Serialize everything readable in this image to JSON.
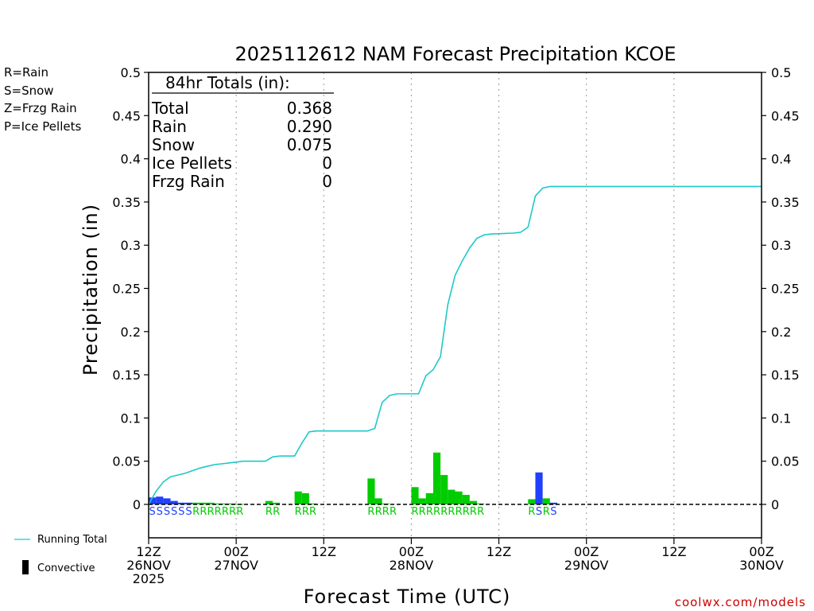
{
  "chart_data": {
    "type": "bar",
    "title": "2025112612 NAM Forecast Precipitation KCOE",
    "xlabel": "Forecast Time (UTC)",
    "ylabel": "Precipitation (in)",
    "ylim": [
      0,
      0.5
    ],
    "y_ticks": [
      "0",
      "0.05",
      "0.1",
      "0.15",
      "0.2",
      "0.25",
      "0.3",
      "0.35",
      "0.4",
      "0.45",
      "0.5"
    ],
    "x_range_hours": [
      0,
      84
    ],
    "x_ticks": [
      {
        "hour": 0,
        "line1": "12Z",
        "line2": "26NOV",
        "line3": "2025"
      },
      {
        "hour": 12,
        "line1": "00Z",
        "line2": "27NOV",
        "line3": ""
      },
      {
        "hour": 24,
        "line1": "12Z",
        "line2": "",
        "line3": ""
      },
      {
        "hour": 36,
        "line1": "00Z",
        "line2": "28NOV",
        "line3": ""
      },
      {
        "hour": 48,
        "line1": "12Z",
        "line2": "",
        "line3": ""
      },
      {
        "hour": 60,
        "line1": "00Z",
        "line2": "29NOV",
        "line3": ""
      },
      {
        "hour": 72,
        "line1": "12Z",
        "line2": "",
        "line3": ""
      },
      {
        "hour": 84,
        "line1": "00Z",
        "line2": "30NOV",
        "line3": ""
      }
    ],
    "series": [
      {
        "name": "Hourly Precipitation",
        "unit": "in",
        "hours": [
          1,
          2,
          3,
          4,
          5,
          6,
          7,
          8,
          9,
          10,
          11,
          12,
          13,
          14,
          15,
          16,
          17,
          18,
          19,
          20,
          21,
          22,
          23,
          24,
          25,
          26,
          27,
          28,
          29,
          30,
          31,
          32,
          33,
          34,
          35,
          36,
          37,
          38,
          39,
          40,
          41,
          42,
          43,
          44,
          45,
          46,
          47,
          48,
          49,
          50,
          51,
          52,
          53,
          54,
          55,
          56,
          57,
          58,
          59,
          60
        ],
        "types": [
          "S",
          "S",
          "S",
          "S",
          "S",
          "S",
          "R",
          "R",
          "R",
          "R",
          "R",
          "R",
          "R",
          "",
          "",
          "",
          "R",
          "R",
          "",
          "",
          "R",
          "R",
          "R",
          "",
          "",
          "",
          "",
          "",
          "",
          "",
          "R",
          "R",
          "R",
          "R",
          "",
          "",
          "R",
          "R",
          "R",
          "R",
          "R",
          "R",
          "R",
          "R",
          "R",
          "R",
          "",
          "",
          "",
          "",
          "",
          "",
          "R",
          "S",
          "R",
          "S",
          "",
          "",
          "",
          ""
        ],
        "values": [
          0.008,
          0.009,
          0.007,
          0.004,
          0.002,
          0.002,
          0.002,
          0.002,
          0.002,
          0.001,
          0.001,
          0.001,
          0.0005,
          0,
          0,
          0,
          0.004,
          0.002,
          0,
          0,
          0.015,
          0.013,
          0.001,
          0,
          0,
          0,
          0,
          0,
          0,
          0,
          0.03,
          0.007,
          0.001,
          0,
          0,
          0,
          0.02,
          0.007,
          0.013,
          0.06,
          0.034,
          0.017,
          0.015,
          0.011,
          0.004,
          0.001,
          0,
          0,
          0,
          0,
          0,
          0,
          0.006,
          0.037,
          0.007,
          0.002,
          0,
          0,
          0,
          0
        ]
      },
      {
        "name": "Running Total",
        "unit": "in",
        "points": [
          [
            0,
            0
          ],
          [
            1,
            0.015
          ],
          [
            2,
            0.026
          ],
          [
            3,
            0.032
          ],
          [
            4,
            0.034
          ],
          [
            5,
            0.036
          ],
          [
            6,
            0.039
          ],
          [
            7,
            0.042
          ],
          [
            8,
            0.044
          ],
          [
            9,
            0.046
          ],
          [
            10,
            0.047
          ],
          [
            11,
            0.048
          ],
          [
            12,
            0.049
          ],
          [
            13,
            0.05
          ],
          [
            14,
            0.05
          ],
          [
            15,
            0.05
          ],
          [
            16,
            0.05
          ],
          [
            17,
            0.055
          ],
          [
            18,
            0.056
          ],
          [
            19,
            0.056
          ],
          [
            20,
            0.056
          ],
          [
            21,
            0.071
          ],
          [
            22,
            0.084
          ],
          [
            23,
            0.085
          ],
          [
            24,
            0.085
          ],
          [
            30,
            0.085
          ],
          [
            31,
            0.088
          ],
          [
            32,
            0.118
          ],
          [
            33,
            0.126
          ],
          [
            34,
            0.128
          ],
          [
            36,
            0.128
          ],
          [
            37,
            0.128
          ],
          [
            38,
            0.149
          ],
          [
            39,
            0.156
          ],
          [
            40,
            0.171
          ],
          [
            41,
            0.231
          ],
          [
            42,
            0.265
          ],
          [
            43,
            0.282
          ],
          [
            44,
            0.297
          ],
          [
            45,
            0.308
          ],
          [
            46,
            0.312
          ],
          [
            47,
            0.313
          ],
          [
            50,
            0.314
          ],
          [
            51,
            0.315
          ],
          [
            52,
            0.321
          ],
          [
            53,
            0.357
          ],
          [
            54,
            0.366
          ],
          [
            55,
            0.368
          ],
          [
            60,
            0.368
          ],
          [
            84,
            0.368
          ]
        ]
      }
    ],
    "colors": {
      "rain": "#00cc00",
      "snow": "#2040ff",
      "freezing_rain": "#f08c3c",
      "ice_pellets": "#e0308c",
      "running_total": "#20c8c8",
      "grid": "#999999"
    }
  },
  "ptype_legend": [
    {
      "label": "R=Rain",
      "color": "#00cc00"
    },
    {
      "label": "S=Snow",
      "color": "#2040ff"
    },
    {
      "label": "Z=Frzg Rain",
      "color": "#f08c3c"
    },
    {
      "label": "P=Ice Pellets",
      "color": "#e0308c"
    }
  ],
  "totals": {
    "header": "84hr Totals (in):",
    "rows": [
      {
        "label": "Total",
        "value": "0.368"
      },
      {
        "label": "Rain",
        "value": "0.290"
      },
      {
        "label": "Snow",
        "value": "0.075"
      },
      {
        "label": "Ice Pellets",
        "value": "0"
      },
      {
        "label": "Frzg Rain",
        "value": "0"
      }
    ]
  },
  "key_legend": {
    "running_total": "Running Total",
    "convective": "Convective"
  },
  "footer": "coolwx.com/models"
}
